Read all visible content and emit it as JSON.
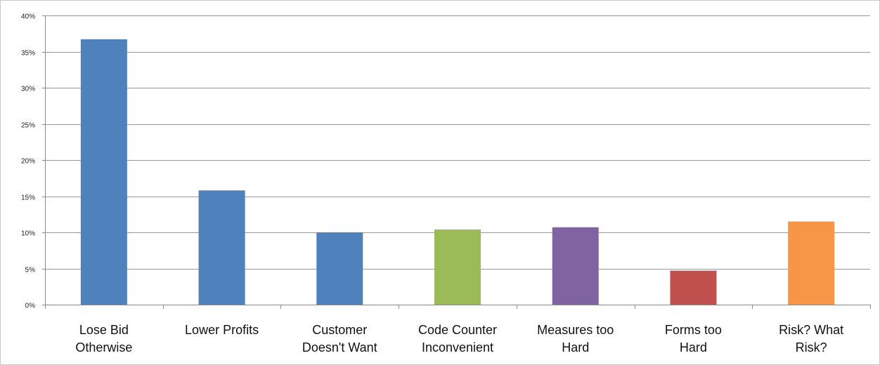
{
  "chart_data": {
    "type": "bar",
    "title": "",
    "xlabel": "",
    "ylabel": "",
    "ylim": [
      0,
      40
    ],
    "y_tick_values": [
      0,
      5,
      10,
      15,
      20,
      25,
      30,
      35,
      40
    ],
    "y_tick_labels": [
      "0%",
      "5%",
      "10%",
      "15%",
      "20%",
      "25%",
      "30%",
      "35%",
      "40%"
    ],
    "grid": "horizontal",
    "legend": "none",
    "categories": [
      "Lose Bid Otherwise",
      "Lower Profits",
      "Customer Doesn't Want",
      "Code Counter Inconvenient",
      "Measures too Hard",
      "Forms too Hard",
      "Risk?  What Risk?"
    ],
    "category_label_lines": [
      [
        "Lose Bid",
        "Otherwise"
      ],
      [
        "Lower Profits"
      ],
      [
        "Customer",
        "Doesn't Want"
      ],
      [
        "Code Counter",
        "Inconvenient"
      ],
      [
        "Measures too",
        "Hard"
      ],
      [
        "Forms too",
        "Hard"
      ],
      [
        "Risk?  What",
        "Risk?"
      ]
    ],
    "values": [
      36.7,
      15.8,
      10.0,
      10.4,
      10.7,
      4.7,
      11.5
    ],
    "bar_colors": [
      "#4F81BD",
      "#4F81BD",
      "#4F81BD",
      "#9BBB59",
      "#8064A2",
      "#C0504D",
      "#F79646"
    ]
  }
}
